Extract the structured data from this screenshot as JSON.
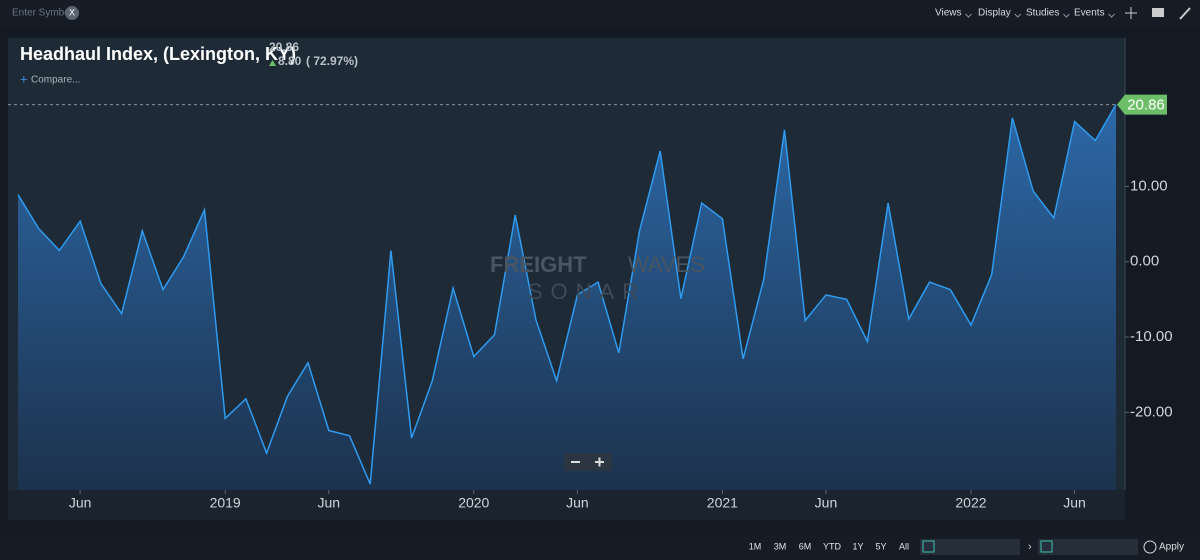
{
  "toolbar": {
    "symbol_placeholder": "Enter Symbol",
    "clear": "X",
    "menus": [
      "Views",
      "Display",
      "Studies",
      "Events"
    ]
  },
  "header": {
    "title": "Headhaul Index, (Lexington, KY)",
    "change": "8.80",
    "change_pct": "( 72.97%)",
    "compare": "Compare..."
  },
  "watermark": {
    "brand_a": "FREIGHT",
    "brand_b": "WAVES",
    "product": "SONAR"
  },
  "footer": {
    "ranges": [
      "1M",
      "3M",
      "6M",
      "YTD",
      "1Y",
      "5Y",
      "All"
    ],
    "apply": "Apply"
  },
  "chart_data": {
    "type": "area",
    "x": [
      "2018-03",
      "2018-04",
      "2018-05",
      "2018-06",
      "2018-07",
      "2018-08",
      "2018-09",
      "2018-10",
      "2018-11",
      "2018-12",
      "2019-01",
      "2019-02",
      "2019-03",
      "2019-04",
      "2019-05",
      "2019-06",
      "2019-07",
      "2019-08",
      "2019-09",
      "2019-10",
      "2019-11",
      "2019-12",
      "2020-01",
      "2020-02",
      "2020-03",
      "2020-04",
      "2020-05",
      "2020-06",
      "2020-07",
      "2020-08",
      "2020-09",
      "2020-10",
      "2020-11",
      "2020-12",
      "2021-01",
      "2021-02",
      "2021-03",
      "2021-04",
      "2021-05",
      "2021-06",
      "2021-07",
      "2021-08",
      "2021-09",
      "2021-10",
      "2021-11",
      "2021-12",
      "2022-01",
      "2022-02",
      "2022-03",
      "2022-04",
      "2022-05",
      "2022-06",
      "2022-07",
      "2022-08"
    ],
    "series": [
      {
        "name": "Headhaul Index, (Lexington, KY)",
        "color": "#2f9bf0",
        "values": [
          8.9,
          4.4,
          1.5,
          5.4,
          -2.9,
          -6.9,
          4.1,
          -3.7,
          0.7,
          6.9,
          -20.8,
          -18.2,
          -25.4,
          -17.9,
          -13.4,
          -22.4,
          -23.1,
          -29.5,
          1.5,
          -23.4,
          -15.8,
          -3.5,
          -12.6,
          -9.7,
          6.2,
          -7.7,
          -15.8,
          -4.4,
          -2.7,
          -12.1,
          4.1,
          14.7,
          -4.9,
          7.8,
          5.7,
          -12.9,
          -2.3,
          17.5,
          -7.8,
          -4.4,
          -5.0,
          -10.6,
          7.8,
          -7.6,
          -2.7,
          -3.7,
          -8.4,
          -1.7,
          19.1,
          9.4,
          5.8,
          18.6,
          16.1,
          20.86
        ]
      }
    ],
    "xlim": [
      "2018-03",
      "2022-08"
    ],
    "xticks": [
      {
        "value": "2018-06",
        "label": "Jun"
      },
      {
        "value": "2019-01",
        "label": "2019"
      },
      {
        "value": "2019-06",
        "label": "Jun"
      },
      {
        "value": "2020-01",
        "label": "2020"
      },
      {
        "value": "2020-06",
        "label": "Jun"
      },
      {
        "value": "2021-01",
        "label": "2021"
      },
      {
        "value": "2021-06",
        "label": "Jun"
      },
      {
        "value": "2022-01",
        "label": "2022"
      },
      {
        "value": "2022-06",
        "label": "Jun"
      }
    ],
    "ylim": [
      -30.3,
      29.7
    ],
    "yticks": [
      {
        "value": 10,
        "label": "10.00"
      },
      {
        "value": 0,
        "label": "0.00"
      },
      {
        "value": -10,
        "label": "-10.00"
      },
      {
        "value": -20,
        "label": "-20.00"
      }
    ],
    "grid": false,
    "last_value_color": "#6dbf67"
  }
}
